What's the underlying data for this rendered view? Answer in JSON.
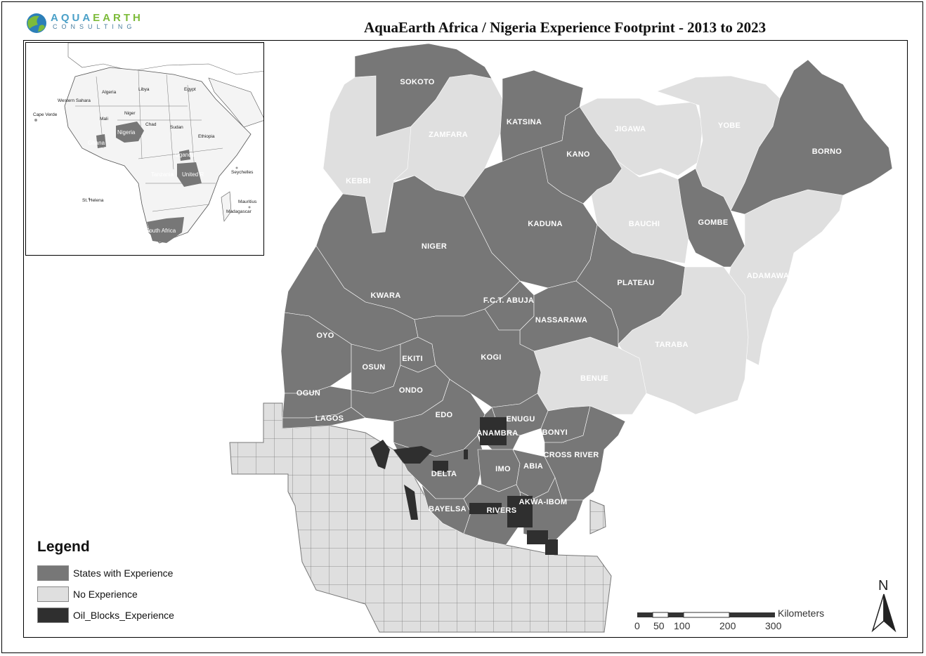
{
  "header": {
    "logo_main_a": "AQUA",
    "logo_main_b": "EARTH",
    "logo_sub": "CONSULTING",
    "title": "AquaEarth Africa / Nigeria Experience Footprint - 2013 to 2023"
  },
  "colors": {
    "experience": "#777777",
    "no_experience": "#dfdfdf",
    "oil_blocks": "#2f2f2f"
  },
  "states_with_experience": [
    "SOKOTO",
    "KATSINA",
    "KANO",
    "KADUNA",
    "NIGER",
    "KWARA",
    "OYO",
    "OGUN",
    "LAGOS",
    "OSUN",
    "EKITI",
    "ONDO",
    "EDO",
    "KOGI",
    "F.C.T. ABUJA",
    "NASSARAWA",
    "PLATEAU",
    "GOMBE",
    "BORNO",
    "ENUGU",
    "ANAMBRA",
    "EBONYI",
    "CROSS RIVER",
    "DELTA",
    "IMO",
    "ABIA",
    "BAYELSA",
    "RIVERS",
    "AKWA-IBOM"
  ],
  "states_no_experience": [
    "ZAMFARA",
    "KEBBI",
    "JIGAWA",
    "YOBE",
    "BAUCHI",
    "ADAMAWA",
    "TARABA",
    "BENUE"
  ],
  "state_labels": {
    "sokoto": "SOKOTO",
    "zamfara": "ZAMFARA",
    "kebbi": "KEBBI",
    "katsina": "KATSINA",
    "kano": "KANO",
    "jigawa": "JIGAWA",
    "yobe": "YOBE",
    "borno": "BORNO",
    "kaduna": "KADUNA",
    "bauchi": "BAUCHI",
    "gombe": "GOMBE",
    "niger": "NIGER",
    "plateau": "PLATEAU",
    "adamawa": "ADAMAWA",
    "kwara": "KWARA",
    "fct": "F.C.T. ABUJA",
    "nassarawa": "NASSARAWA",
    "taraba": "TARABA",
    "oyo": "OYO",
    "kogi": "KOGI",
    "osun": "OSUN",
    "ekiti": "EKITI",
    "benue": "BENUE",
    "ogun": "OGUN",
    "ondo": "ONDO",
    "lagos": "LAGOS",
    "edo": "EDO",
    "enugu": "ENUGU",
    "anambra": "ANAMBRA",
    "ebonyi": "EBONYI",
    "crossriver": "CROSS RIVER",
    "delta": "DELTA",
    "imo": "IMO",
    "abia": "ABIA",
    "bayelsa": "BAYELSA",
    "rivers": "RIVERS",
    "akwaibom": "AKWA-IBOM"
  },
  "inset": {
    "labels": {
      "nigeria": "Nigeria",
      "ghana": "Ghana",
      "uganda": "Uganda",
      "tanzania": "Tanzania",
      "united_r": "United R",
      "south_africa": "South Africa",
      "algeria": "Algeria",
      "libya": "Libya",
      "egypt": "Egypt",
      "sudan": "Sudan",
      "chad": "Chad",
      "niger": "Niger",
      "mali": "Mali",
      "ethiopia": "Ethiopia",
      "cape_verde": "Cape Verde",
      "st_helena": "St. Helena",
      "madagascar": "Madagascar",
      "seychelles": "Seychelles",
      "mauritius": "Mauritius",
      "western_sahara": "Western Sahara"
    }
  },
  "legend": {
    "title": "Legend",
    "items": [
      {
        "label": "States with Experience"
      },
      {
        "label": "No Experience"
      },
      {
        "label": "Oil_Blocks_Experience"
      }
    ]
  },
  "scalebar": {
    "unit": "Kilometers",
    "ticks": [
      "0",
      "50",
      "100",
      "200",
      "300"
    ]
  },
  "north_arrow": {
    "label": "N",
    "icon": "north-arrow-icon"
  }
}
